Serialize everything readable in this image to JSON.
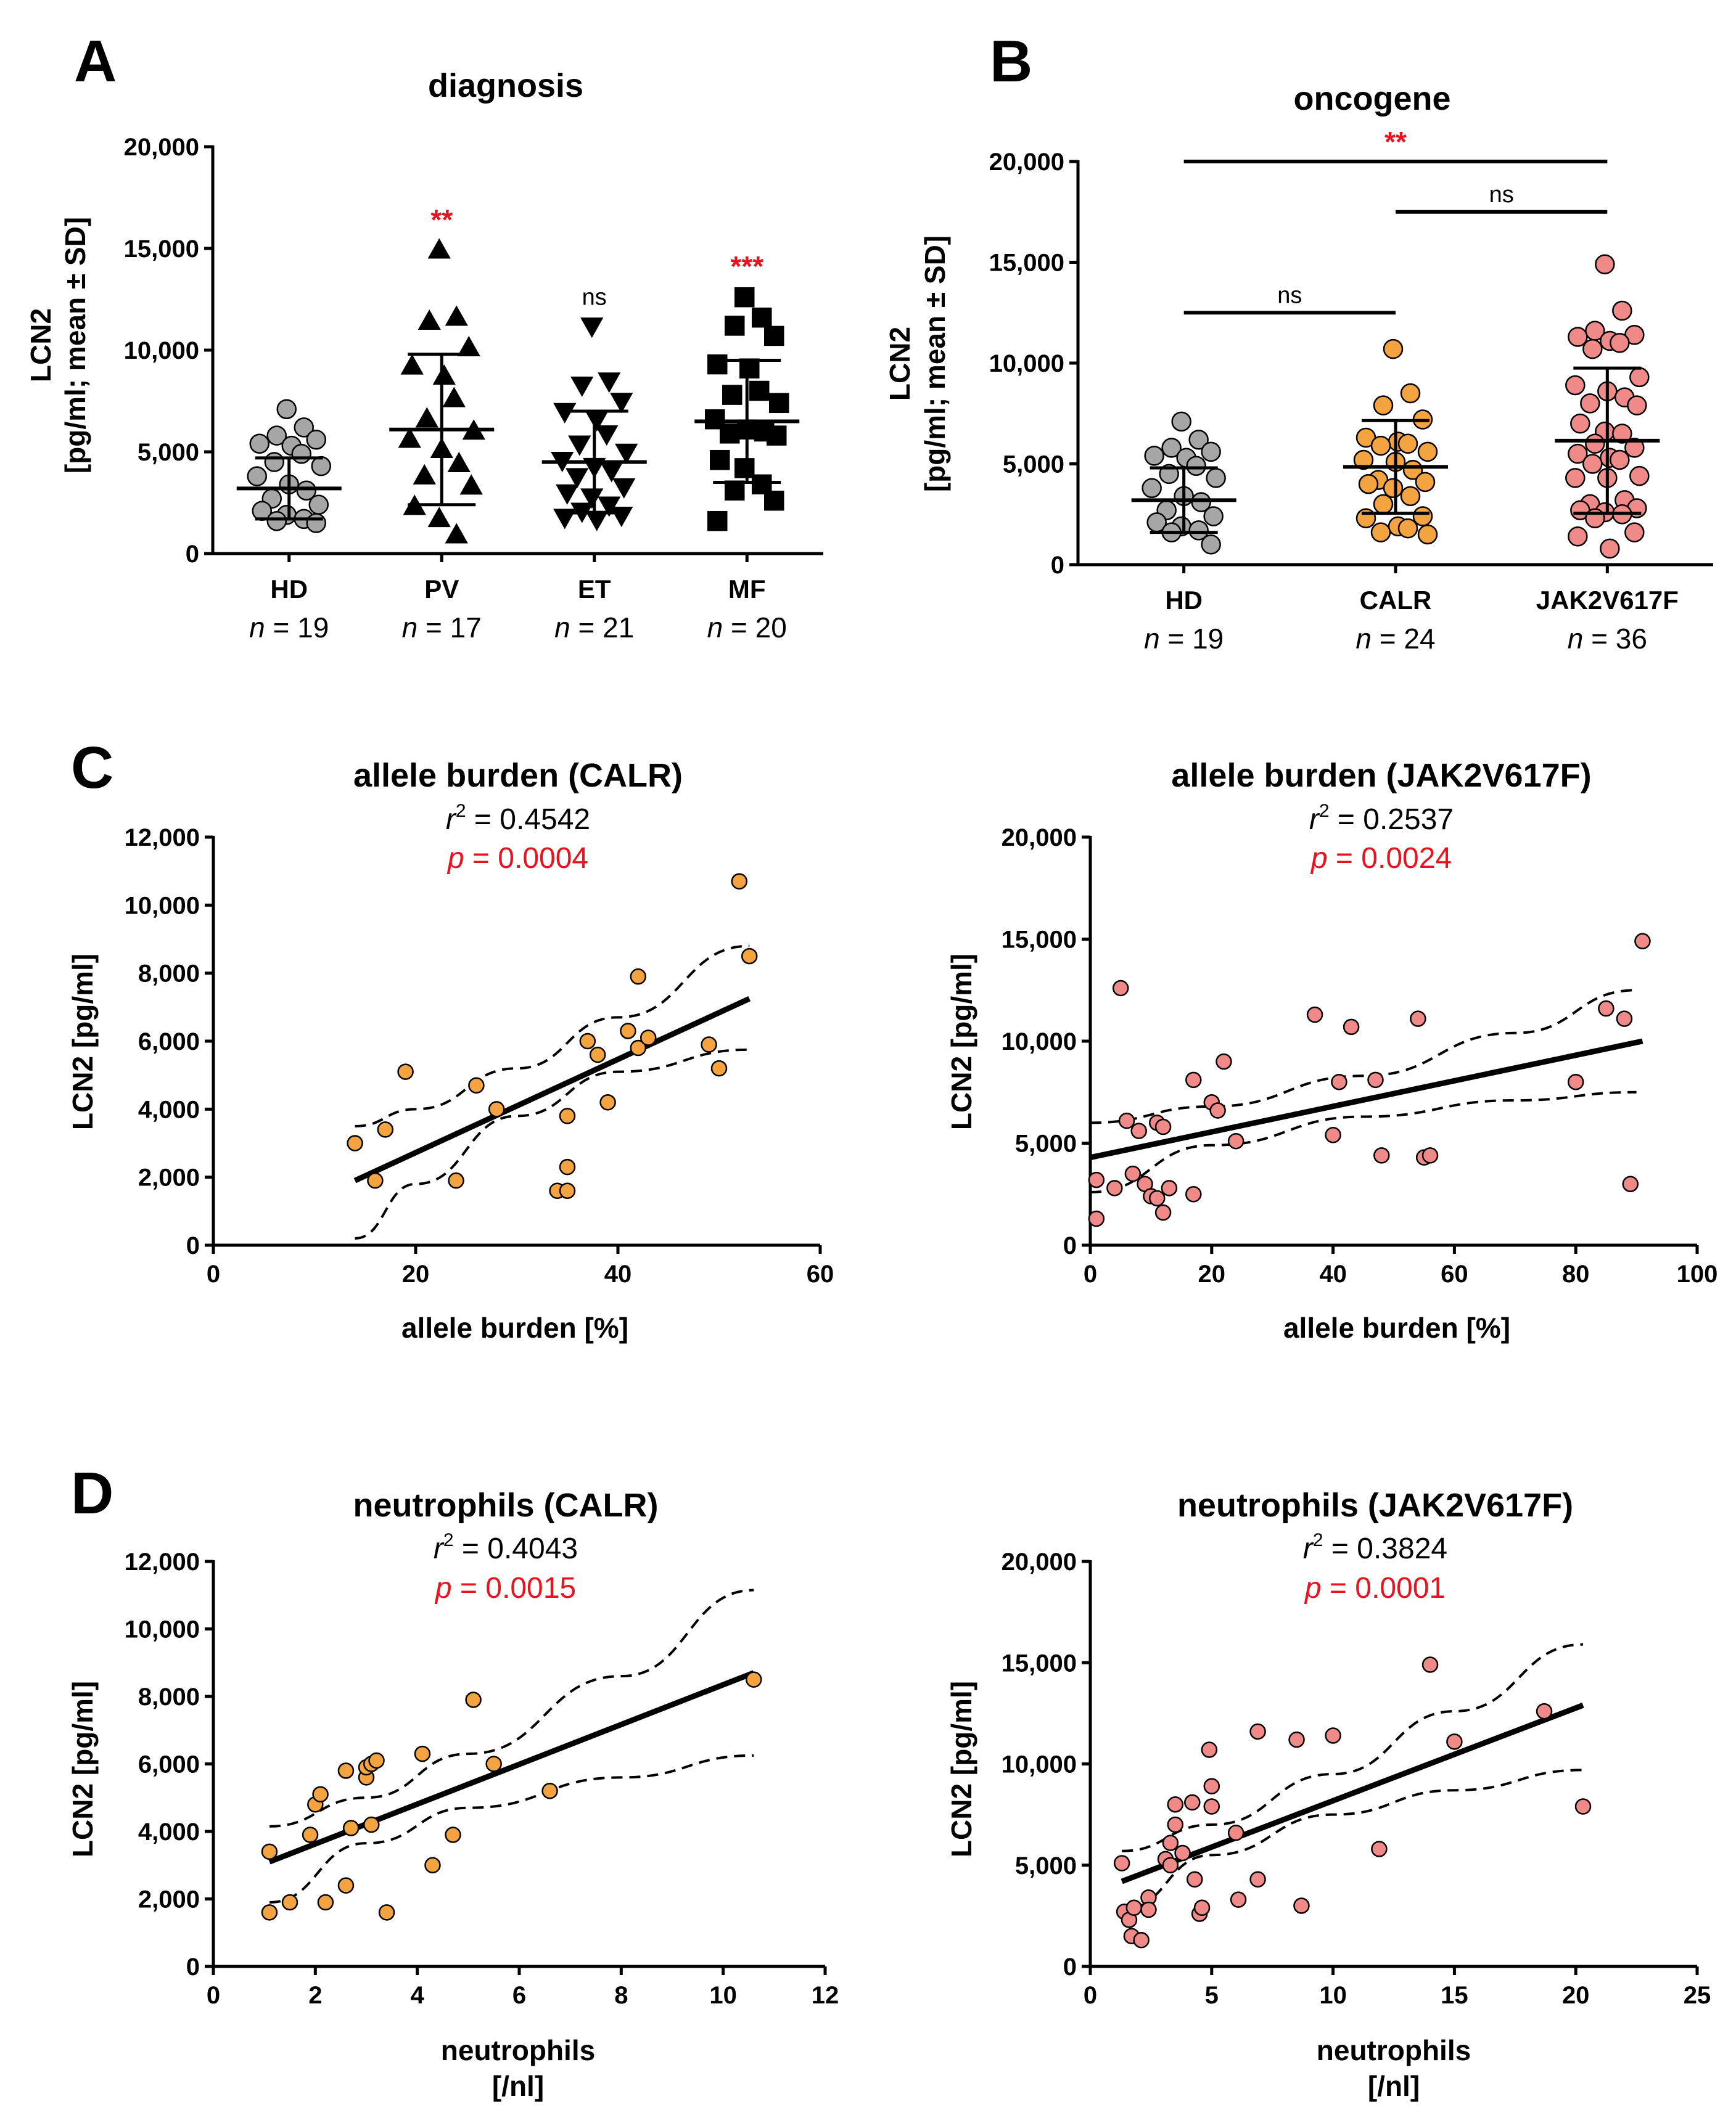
{
  "colors": {
    "grey": "#a6a6a6",
    "orange": "#f4a341",
    "salmon": "#f08a88",
    "black": "#000000",
    "red": "#e8131f"
  },
  "chart_data": [
    {
      "id": "A",
      "type": "scatter",
      "panel_label": "A",
      "title": "diagnosis",
      "ylabel": "LCN2",
      "ylabel2": "[pg/ml; mean ± SD]",
      "ylim": [
        0,
        20000
      ],
      "yticks": [
        0,
        5000,
        10000,
        15000,
        20000
      ],
      "ytick_labels": [
        "0",
        "5,000",
        "10,000",
        "15,000",
        "20,000"
      ],
      "categories": [
        "HD",
        "PV",
        "ET",
        "MF"
      ],
      "n_labels": [
        "n = 19",
        "n = 17",
        "n = 21",
        "n = 20"
      ],
      "marker_colors": [
        "#a6a6a6",
        "#000000",
        "#000000",
        "#000000"
      ],
      "markers": [
        "circle",
        "triangle-up",
        "triangle-down",
        "square"
      ],
      "significance": [
        {
          "category": "PV",
          "label": "**",
          "red": true
        },
        {
          "category": "ET",
          "label": "ns",
          "red": false
        },
        {
          "category": "MF",
          "label": "***",
          "red": true
        }
      ],
      "groups": [
        {
          "name": "HD",
          "mean": 3200,
          "sd": 1500,
          "values": [
            7100,
            6200,
            5800,
            5600,
            5400,
            5300,
            4900,
            4500,
            4300,
            3800,
            3400,
            3100,
            2700,
            2400,
            2100,
            1900,
            1700,
            1600,
            1500
          ]
        },
        {
          "name": "PV",
          "mean": 6100,
          "sd": 3700,
          "values": [
            14900,
            11600,
            11400,
            10100,
            9200,
            8700,
            7600,
            6600,
            6000,
            5600,
            5100,
            4400,
            3800,
            3300,
            2300,
            1700,
            900
          ]
        },
        {
          "name": "ET",
          "mean": 4500,
          "sd": 2500,
          "values": [
            11200,
            8500,
            8300,
            7500,
            7000,
            6600,
            5900,
            5400,
            5000,
            4600,
            4300,
            4100,
            3800,
            3300,
            3000,
            2800,
            2400,
            2100,
            1900,
            1800,
            1700
          ]
        },
        {
          "name": "MF",
          "mean": 6500,
          "sd": 3000,
          "values": [
            12600,
            11600,
            11200,
            10700,
            9300,
            9100,
            8000,
            7800,
            7400,
            6600,
            6100,
            6000,
            5900,
            5800,
            4600,
            4200,
            3400,
            3100,
            2600,
            1600
          ]
        }
      ]
    },
    {
      "id": "B",
      "type": "scatter",
      "panel_label": "B",
      "title": "oncogene",
      "ylabel": "LCN2",
      "ylabel2": "[pg/ml; mean ± SD]",
      "ylim": [
        0,
        20000
      ],
      "yticks": [
        0,
        5000,
        10000,
        15000,
        20000
      ],
      "ytick_labels": [
        "0",
        "5,000",
        "10,000",
        "15,000",
        "20,000"
      ],
      "categories": [
        "HD",
        "CALR",
        "JAK2V617F"
      ],
      "n_labels": [
        "n = 19",
        "n = 24",
        "n = 36"
      ],
      "marker_colors": [
        "#a6a6a6",
        "#f4a341",
        "#f08a88"
      ],
      "comparisons": [
        {
          "from": "HD",
          "to": "CALR",
          "label": "ns",
          "red": false
        },
        {
          "from": "HD",
          "to": "JAK2V617F",
          "label": "**",
          "red": true
        },
        {
          "from": "CALR",
          "to": "JAK2V617F",
          "label": "ns",
          "red": false
        }
      ],
      "groups": [
        {
          "name": "HD",
          "mean": 3200,
          "sd": 1600,
          "values": [
            7100,
            6200,
            5800,
            5600,
            5400,
            5300,
            4900,
            4500,
            4300,
            3800,
            3400,
            3100,
            2700,
            2400,
            2100,
            1900,
            1700,
            1600,
            1000
          ]
        },
        {
          "name": "CALR",
          "mean": 4850,
          "sd": 2300,
          "values": [
            10700,
            8500,
            7900,
            7200,
            6300,
            6100,
            6000,
            5900,
            5600,
            5200,
            5100,
            4700,
            4200,
            4100,
            4000,
            3800,
            3400,
            3000,
            2400,
            2300,
            1900,
            1800,
            1600,
            1500
          ]
        },
        {
          "name": "JAK2V617F",
          "mean": 6150,
          "sd": 3600,
          "values": [
            14900,
            12600,
            11600,
            11400,
            11300,
            11100,
            11000,
            10700,
            9300,
            8900,
            8600,
            8300,
            8000,
            7900,
            7000,
            6600,
            6500,
            6000,
            5800,
            5500,
            5300,
            5200,
            5000,
            4400,
            4300,
            4300,
            3200,
            3000,
            2800,
            2700,
            2600,
            2500,
            2300,
            1600,
            1400,
            800
          ]
        }
      ]
    },
    {
      "id": "C1",
      "type": "scatter",
      "panel_label": "C",
      "title": "allele burden (CALR)",
      "r2_text": "= 0.4542",
      "p_text": "= 0.0004",
      "xlabel": "allele burden [%]",
      "ylabel": "LCN2 [pg/ml]",
      "xlim": [
        0,
        60
      ],
      "xticks": [
        0,
        20,
        40,
        60
      ],
      "xtick_labels": [
        "0",
        "20",
        "40",
        "60"
      ],
      "ylim": [
        0,
        12000
      ],
      "yticks": [
        0,
        2000,
        4000,
        6000,
        8000,
        10000,
        12000
      ],
      "ytick_labels": [
        "0",
        "2,000",
        "4,000",
        "6,000",
        "8,000",
        "10,000",
        "12,000"
      ],
      "marker_color": "#f4a341",
      "points": [
        [
          14,
          3000
        ],
        [
          16,
          1900
        ],
        [
          17,
          3400
        ],
        [
          19,
          5100
        ],
        [
          24,
          1900
        ],
        [
          26,
          4700
        ],
        [
          28,
          4000
        ],
        [
          34,
          1600
        ],
        [
          35,
          1600
        ],
        [
          35,
          2300
        ],
        [
          35,
          3800
        ],
        [
          37,
          6000
        ],
        [
          38,
          5600
        ],
        [
          39,
          4200
        ],
        [
          41,
          6300
        ],
        [
          42,
          5800
        ],
        [
          42,
          7900
        ],
        [
          43,
          6100
        ],
        [
          49,
          5900
        ],
        [
          50,
          5200
        ],
        [
          52,
          10700
        ],
        [
          53,
          8500
        ]
      ],
      "fit": {
        "x0": 14,
        "y0": 1900,
        "x1": 53,
        "y1": 7250
      },
      "ci_upper": [
        [
          14,
          3500
        ],
        [
          20,
          4000
        ],
        [
          30,
          5200
        ],
        [
          40,
          6700
        ],
        [
          53,
          8800
        ]
      ],
      "ci_lower": [
        [
          14,
          200
        ],
        [
          20,
          1800
        ],
        [
          30,
          3800
        ],
        [
          40,
          5100
        ],
        [
          53,
          5750
        ]
      ]
    },
    {
      "id": "C2",
      "type": "scatter",
      "panel_label": "",
      "title": "allele burden (JAK2V617F)",
      "r2_text": "= 0.2537",
      "p_text": "= 0.0024",
      "xlabel": "allele burden [%]",
      "ylabel": "LCN2 [pg/ml]",
      "xlim": [
        0,
        100
      ],
      "xticks": [
        0,
        20,
        40,
        60,
        80,
        100
      ],
      "xtick_labels": [
        "0",
        "20",
        "40",
        "60",
        "80",
        "100"
      ],
      "ylim": [
        0,
        20000
      ],
      "yticks": [
        0,
        5000,
        10000,
        15000,
        20000
      ],
      "ytick_labels": [
        "0",
        "5,000",
        "10,000",
        "15,000",
        "20,000"
      ],
      "marker_color": "#f08a88",
      "points": [
        [
          1,
          1300
        ],
        [
          1,
          3200
        ],
        [
          4,
          2800
        ],
        [
          5,
          12600
        ],
        [
          6,
          6100
        ],
        [
          7,
          3500
        ],
        [
          8,
          5600
        ],
        [
          9,
          3000
        ],
        [
          10,
          2400
        ],
        [
          11,
          2300
        ],
        [
          11,
          6000
        ],
        [
          12,
          1600
        ],
        [
          12,
          5800
        ],
        [
          13,
          2800
        ],
        [
          17,
          8100
        ],
        [
          17,
          2500
        ],
        [
          20,
          7000
        ],
        [
          21,
          6600
        ],
        [
          22,
          9000
        ],
        [
          24,
          5100
        ],
        [
          37,
          11300
        ],
        [
          40,
          5400
        ],
        [
          41,
          8000
        ],
        [
          43,
          10700
        ],
        [
          47,
          8100
        ],
        [
          48,
          4400
        ],
        [
          54,
          11100
        ],
        [
          55,
          4300
        ],
        [
          56,
          4400
        ],
        [
          80,
          8000
        ],
        [
          85,
          11600
        ],
        [
          88,
          11100
        ],
        [
          89,
          3000
        ],
        [
          91,
          14900
        ]
      ],
      "fit": {
        "x0": 0,
        "y0": 4300,
        "x1": 91,
        "y1": 10000
      },
      "ci_upper": [
        [
          0,
          6000
        ],
        [
          20,
          6800
        ],
        [
          45,
          8300
        ],
        [
          70,
          10400
        ],
        [
          90,
          12500
        ]
      ],
      "ci_lower": [
        [
          0,
          2600
        ],
        [
          20,
          4900
        ],
        [
          45,
          6300
        ],
        [
          70,
          7100
        ],
        [
          90,
          7500
        ]
      ]
    },
    {
      "id": "D1",
      "type": "scatter",
      "panel_label": "D",
      "title": "neutrophils (CALR)",
      "r2_text": "= 0.4043",
      "p_text": "= 0.0015",
      "xlabel": "neutrophils",
      "xlabel2": "[/nl]",
      "ylabel": "LCN2 [pg/ml]",
      "xlim": [
        0,
        12
      ],
      "xticks": [
        0,
        2,
        4,
        6,
        8,
        10,
        12
      ],
      "xtick_labels": [
        "0",
        "2",
        "4",
        "6",
        "8",
        "10",
        "12"
      ],
      "ylim": [
        0,
        12000
      ],
      "yticks": [
        0,
        2000,
        4000,
        6000,
        8000,
        10000,
        12000
      ],
      "ytick_labels": [
        "0",
        "2,000",
        "4,000",
        "6,000",
        "8,000",
        "10,000",
        "12,000"
      ],
      "marker_color": "#f4a341",
      "points": [
        [
          1.1,
          1600
        ],
        [
          1.1,
          3400
        ],
        [
          1.5,
          1900
        ],
        [
          1.9,
          3900
        ],
        [
          2.0,
          4800
        ],
        [
          2.1,
          5100
        ],
        [
          2.2,
          1900
        ],
        [
          2.6,
          2400
        ],
        [
          2.6,
          5800
        ],
        [
          2.7,
          4100
        ],
        [
          3.0,
          5600
        ],
        [
          3.0,
          5900
        ],
        [
          3.1,
          6000
        ],
        [
          3.1,
          4200
        ],
        [
          3.2,
          6100
        ],
        [
          3.4,
          1600
        ],
        [
          4.1,
          6300
        ],
        [
          4.3,
          3000
        ],
        [
          4.7,
          3900
        ],
        [
          5.1,
          7900
        ],
        [
          5.5,
          6000
        ],
        [
          6.6,
          5200
        ],
        [
          10.6,
          8500
        ]
      ],
      "fit": {
        "x0": 1.1,
        "y0": 3100,
        "x1": 10.6,
        "y1": 8700
      },
      "ci_upper": [
        [
          1.1,
          4150
        ],
        [
          3,
          5000
        ],
        [
          5,
          6300
        ],
        [
          8,
          8600
        ],
        [
          10.6,
          11150
        ]
      ],
      "ci_lower": [
        [
          1.1,
          1900
        ],
        [
          3,
          3650
        ],
        [
          5,
          4700
        ],
        [
          8,
          5600
        ],
        [
          10.6,
          6250
        ]
      ]
    },
    {
      "id": "D2",
      "type": "scatter",
      "panel_label": "",
      "title": "neutrophils (JAK2V617F)",
      "r2_text": "= 0.3824",
      "p_text": "= 0.0001",
      "xlabel": "neutrophils",
      "xlabel2": "[/nl]",
      "ylabel": "LCN2 [pg/ml]",
      "xlim": [
        0,
        25
      ],
      "xticks": [
        0,
        5,
        10,
        15,
        20,
        25
      ],
      "xtick_labels": [
        "0",
        "5",
        "10",
        "15",
        "20",
        "25"
      ],
      "ylim": [
        0,
        20000
      ],
      "yticks": [
        0,
        5000,
        10000,
        15000,
        20000
      ],
      "ytick_labels": [
        "0",
        "5,000",
        "10,000",
        "15,000",
        "20,000"
      ],
      "marker_color": "#f08a88",
      "points": [
        [
          1.3,
          5100
        ],
        [
          1.4,
          2700
        ],
        [
          1.6,
          2300
        ],
        [
          1.7,
          1500
        ],
        [
          1.8,
          2900
        ],
        [
          2.1,
          1300
        ],
        [
          2.4,
          3400
        ],
        [
          2.4,
          2800
        ],
        [
          3.1,
          5300
        ],
        [
          3.3,
          5000
        ],
        [
          3.3,
          6100
        ],
        [
          3.5,
          8000
        ],
        [
          3.5,
          7000
        ],
        [
          3.8,
          5600
        ],
        [
          4.2,
          8100
        ],
        [
          4.3,
          4300
        ],
        [
          4.5,
          2600
        ],
        [
          4.6,
          2900
        ],
        [
          4.9,
          10700
        ],
        [
          5.0,
          7900
        ],
        [
          5.0,
          8900
        ],
        [
          6.0,
          6600
        ],
        [
          6.1,
          3300
        ],
        [
          6.9,
          11600
        ],
        [
          6.9,
          4300
        ],
        [
          8.5,
          11200
        ],
        [
          8.7,
          3000
        ],
        [
          10.0,
          11400
        ],
        [
          11.9,
          5800
        ],
        [
          14.0,
          14900
        ],
        [
          15.0,
          11100
        ],
        [
          18.7,
          12600
        ],
        [
          20.3,
          7900
        ]
      ],
      "fit": {
        "x0": 1.3,
        "y0": 4200,
        "x1": 20.3,
        "y1": 12900
      },
      "ci_upper": [
        [
          1.3,
          5700
        ],
        [
          5,
          7000
        ],
        [
          10,
          9500
        ],
        [
          15,
          12600
        ],
        [
          20.3,
          15900
        ]
      ],
      "ci_lower": [
        [
          1.3,
          2800
        ],
        [
          5,
          5500
        ],
        [
          10,
          7500
        ],
        [
          15,
          8700
        ],
        [
          20.3,
          9700
        ]
      ]
    }
  ]
}
